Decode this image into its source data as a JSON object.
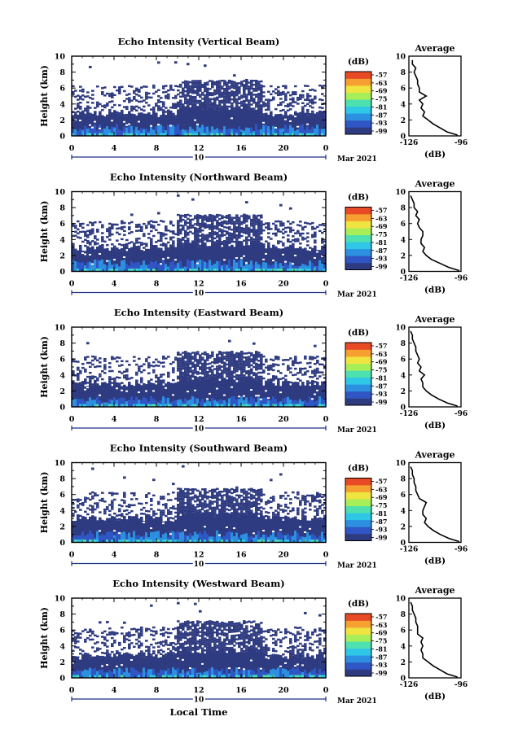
{
  "figure": {
    "xlabel": "Local Time",
    "x_ticks": [
      "0",
      "4",
      "8",
      "12",
      "16",
      "20",
      "0"
    ],
    "date_marker": "10",
    "date_label": "Mar 2021"
  },
  "chart_data": [
    {
      "type": "heatmap",
      "title": "Echo Intensity (Vertical Beam)",
      "ylabel": "Height (km)",
      "xlim": [
        0,
        24
      ],
      "ylim": [
        0,
        10
      ],
      "y_ticks": [
        "0",
        "2",
        "4",
        "6",
        "8",
        "10"
      ],
      "colorbar": {
        "unit": "(dB)",
        "ticks": [
          "-57",
          "-63",
          "-69",
          "-75",
          "-81",
          "-87",
          "-93",
          "-99"
        ]
      },
      "echo_layers_km": {
        "lowest_strong_top": 1.0,
        "dense_top_early": 2.8,
        "dense_top_mid": 3.6,
        "sparse_top_mid": 6.8,
        "isolated_echo_top": 9.7
      },
      "average_profile": {
        "title": "Average",
        "xlabel": "(dB)",
        "xlim": [
          -126,
          -96
        ],
        "x_ticks": [
          "-126",
          "-96"
        ],
        "ylim": [
          0,
          10
        ],
        "y_ticks": [
          "0",
          "2",
          "4",
          "6",
          "8",
          "10"
        ],
        "height_km": [
          0.1,
          0.5,
          1.0,
          1.5,
          2.0,
          2.5,
          3.0,
          3.5,
          4.0,
          4.5,
          5.0,
          5.5,
          6.0,
          6.5,
          7.0,
          7.5,
          8.0,
          8.5,
          9.0,
          9.5
        ],
        "value_db": [
          -98,
          -104,
          -108,
          -112,
          -115,
          -118,
          -117,
          -119,
          -118,
          -120,
          -116,
          -120,
          -120,
          -121,
          -121,
          -122,
          -123,
          -122,
          -124,
          -124
        ]
      }
    },
    {
      "type": "heatmap",
      "title": "Echo Intensity (Northward Beam)",
      "ylabel": "Height (km)",
      "xlim": [
        0,
        24
      ],
      "ylim": [
        0,
        10
      ],
      "y_ticks": [
        "0",
        "2",
        "4",
        "6",
        "8",
        "10"
      ],
      "colorbar": {
        "unit": "(dB)",
        "ticks": [
          "-57",
          "-63",
          "-69",
          "-75",
          "-81",
          "-87",
          "-93",
          "-99"
        ]
      },
      "echo_layers_km": {
        "lowest_strong_top": 1.0,
        "dense_top_early": 3.0,
        "dense_top_mid": 3.5,
        "sparse_top_mid": 7.0,
        "isolated_echo_top": 9.8
      },
      "average_profile": {
        "title": "Average",
        "xlabel": "(dB)",
        "xlim": [
          -126,
          -96
        ],
        "x_ticks": [
          "-126",
          "-96"
        ],
        "ylim": [
          0,
          10
        ],
        "y_ticks": [
          "0",
          "2",
          "4",
          "6",
          "8",
          "10"
        ],
        "height_km": [
          0.1,
          0.5,
          1.0,
          1.5,
          2.0,
          2.5,
          3.0,
          3.5,
          4.0,
          4.5,
          5.0,
          5.5,
          6.0,
          6.5,
          7.0,
          7.5,
          8.0,
          8.5,
          9.0,
          9.5
        ],
        "value_db": [
          -97,
          -103,
          -108,
          -113,
          -116,
          -118,
          -117,
          -119,
          -119,
          -118,
          -118,
          -120,
          -121,
          -120,
          -122,
          -121,
          -123,
          -123,
          -124,
          -125
        ]
      }
    },
    {
      "type": "heatmap",
      "title": "Echo Intensity (Eastward Beam)",
      "ylabel": "Height (km)",
      "xlim": [
        0,
        24
      ],
      "ylim": [
        0,
        10
      ],
      "y_ticks": [
        "0",
        "2",
        "4",
        "6",
        "8",
        "10"
      ],
      "colorbar": {
        "unit": "(dB)",
        "ticks": [
          "-57",
          "-63",
          "-69",
          "-75",
          "-81",
          "-87",
          "-93",
          "-99"
        ]
      },
      "echo_layers_km": {
        "lowest_strong_top": 0.9,
        "dense_top_early": 3.0,
        "dense_top_mid": 3.5,
        "sparse_top_mid": 6.8,
        "isolated_echo_top": 9.6
      },
      "average_profile": {
        "title": "Average",
        "xlabel": "(dB)",
        "xlim": [
          -126,
          -96
        ],
        "x_ticks": [
          "-126",
          "-96"
        ],
        "ylim": [
          0,
          10
        ],
        "y_ticks": [
          "0",
          "2",
          "4",
          "6",
          "8",
          "10"
        ],
        "height_km": [
          0.1,
          0.5,
          1.0,
          1.5,
          2.0,
          2.5,
          3.0,
          3.5,
          4.0,
          4.5,
          5.0,
          5.5,
          6.0,
          6.5,
          7.0,
          7.5,
          8.0,
          8.5,
          9.0,
          9.5
        ],
        "value_db": [
          -98,
          -104,
          -109,
          -113,
          -116,
          -118,
          -118,
          -119,
          -117,
          -120,
          -119,
          -121,
          -120,
          -121,
          -122,
          -122,
          -123,
          -124,
          -124,
          -125
        ]
      }
    },
    {
      "type": "heatmap",
      "title": "Echo Intensity (Southward Beam)",
      "ylabel": "Height (km)",
      "xlim": [
        0,
        24
      ],
      "ylim": [
        0,
        10
      ],
      "y_ticks": [
        "0",
        "2",
        "4",
        "6",
        "8",
        "10"
      ],
      "colorbar": {
        "unit": "(dB)",
        "ticks": [
          "-57",
          "-63",
          "-69",
          "-75",
          "-81",
          "-87",
          "-93",
          "-99"
        ]
      },
      "echo_layers_km": {
        "lowest_strong_top": 1.0,
        "dense_top_early": 3.0,
        "dense_top_mid": 3.6,
        "sparse_top_mid": 6.6,
        "isolated_echo_top": 9.8
      },
      "average_profile": {
        "title": "Average",
        "xlabel": "(dB)",
        "xlim": [
          -126,
          -96
        ],
        "x_ticks": [
          "-126",
          "-96"
        ],
        "ylim": [
          0,
          10
        ],
        "y_ticks": [
          "0",
          "2",
          "4",
          "6",
          "8",
          "10"
        ],
        "height_km": [
          0.1,
          0.5,
          1.0,
          1.5,
          2.0,
          2.5,
          3.0,
          3.5,
          4.0,
          4.5,
          5.0,
          5.5,
          6.0,
          6.5,
          7.0,
          7.5,
          8.0,
          8.5,
          9.0,
          9.5
        ],
        "value_db": [
          -97,
          -103,
          -108,
          -112,
          -115,
          -117,
          -116,
          -118,
          -118,
          -117,
          -116,
          -120,
          -121,
          -122,
          -122,
          -123,
          -123,
          -124,
          -124,
          -125
        ]
      }
    },
    {
      "type": "heatmap",
      "title": "Echo Intensity (Westward Beam)",
      "ylabel": "Height (km)",
      "xlim": [
        0,
        24
      ],
      "ylim": [
        0,
        10
      ],
      "y_ticks": [
        "0",
        "2",
        "4",
        "6",
        "8",
        "10"
      ],
      "colorbar": {
        "unit": "(dB)",
        "ticks": [
          "-57",
          "-63",
          "-69",
          "-75",
          "-81",
          "-87",
          "-93",
          "-99"
        ]
      },
      "echo_layers_km": {
        "lowest_strong_top": 0.9,
        "dense_top_early": 2.8,
        "dense_top_mid": 3.5,
        "sparse_top_mid": 7.0,
        "isolated_echo_top": 9.6
      },
      "average_profile": {
        "title": "Average",
        "xlabel": "(dB)",
        "xlim": [
          -126,
          -96
        ],
        "x_ticks": [
          "-126",
          "-96"
        ],
        "ylim": [
          0,
          10
        ],
        "y_ticks": [
          "0",
          "2",
          "4",
          "6",
          "8",
          "10"
        ],
        "height_km": [
          0.1,
          0.5,
          1.0,
          1.5,
          2.0,
          2.5,
          3.0,
          3.5,
          4.0,
          4.5,
          5.0,
          5.5,
          6.0,
          6.5,
          7.0,
          7.5,
          8.0,
          8.5,
          9.0,
          9.5
        ],
        "value_db": [
          -98,
          -104,
          -108,
          -112,
          -115,
          -118,
          -118,
          -119,
          -118,
          -119,
          -118,
          -121,
          -121,
          -121,
          -122,
          -122,
          -123,
          -124,
          -124,
          -125
        ]
      }
    }
  ]
}
